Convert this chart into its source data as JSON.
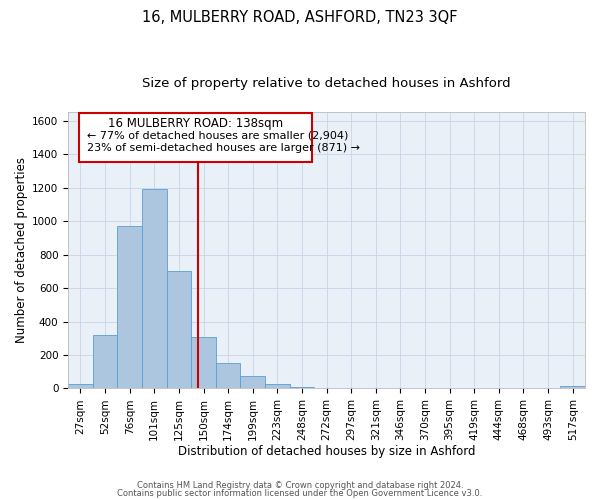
{
  "title": "16, MULBERRY ROAD, ASHFORD, TN23 3QF",
  "subtitle": "Size of property relative to detached houses in Ashford",
  "xlabel": "Distribution of detached houses by size in Ashford",
  "ylabel": "Number of detached properties",
  "bar_labels": [
    "27sqm",
    "52sqm",
    "76sqm",
    "101sqm",
    "125sqm",
    "150sqm",
    "174sqm",
    "199sqm",
    "223sqm",
    "248sqm",
    "272sqm",
    "297sqm",
    "321sqm",
    "346sqm",
    "370sqm",
    "395sqm",
    "419sqm",
    "444sqm",
    "468sqm",
    "493sqm",
    "517sqm"
  ],
  "bar_values": [
    25,
    320,
    970,
    1195,
    700,
    310,
    150,
    75,
    25,
    10,
    0,
    0,
    0,
    0,
    0,
    0,
    0,
    0,
    0,
    0,
    15
  ],
  "bar_color": "#adc6e0",
  "bar_edge_color": "#5a9fd4",
  "vline_x": 4.77,
  "vline_color": "#cc0000",
  "ylim": [
    0,
    1650
  ],
  "yticks": [
    0,
    200,
    400,
    600,
    800,
    1000,
    1200,
    1400,
    1600
  ],
  "annotation_title": "16 MULBERRY ROAD: 138sqm",
  "annotation_line1": "← 77% of detached houses are smaller (2,904)",
  "annotation_line2": "23% of semi-detached houses are larger (871) →",
  "annotation_box_color": "#ffffff",
  "annotation_box_edge": "#cc0000",
  "footer1": "Contains HM Land Registry data © Crown copyright and database right 2024.",
  "footer2": "Contains public sector information licensed under the Open Government Licence v3.0.",
  "bg_color": "#ffffff",
  "ax_bg_color": "#eaf0f8",
  "grid_color": "#c8d4e8",
  "title_fontsize": 10.5,
  "subtitle_fontsize": 9.5,
  "axis_label_fontsize": 8.5,
  "tick_fontsize": 7.5,
  "ann_title_fontsize": 8.5,
  "ann_text_fontsize": 8.0
}
